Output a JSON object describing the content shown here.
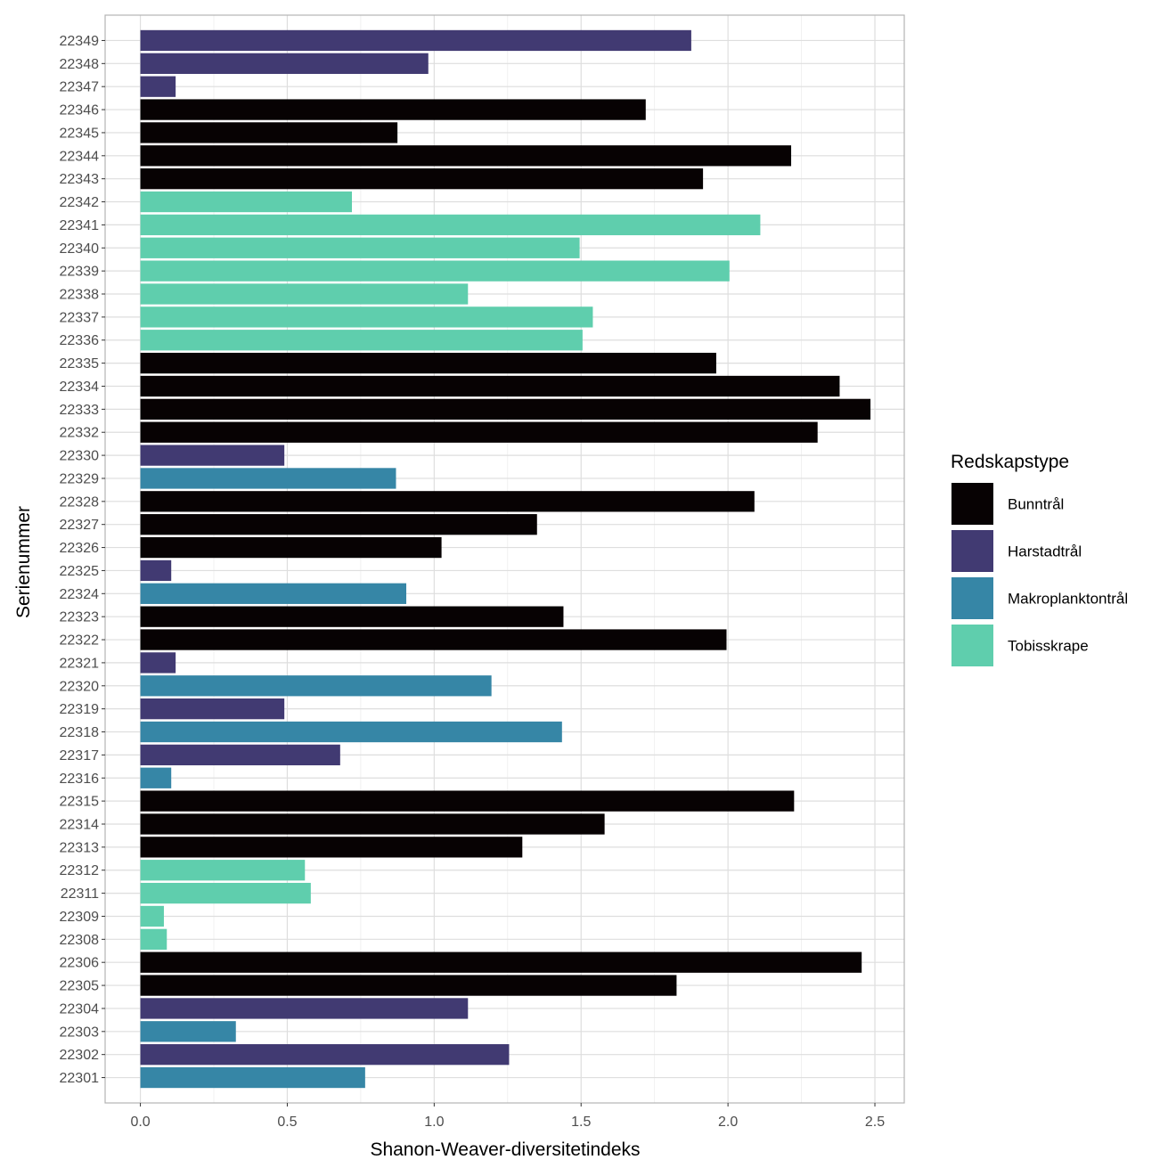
{
  "chart_data": {
    "type": "bar",
    "orientation": "horizontal",
    "title": "",
    "xlabel": "Shanon-Weaver-diversitetindeks",
    "ylabel": "Serienummer",
    "xlim": [
      -0.12,
      2.6
    ],
    "xticks": [
      0.0,
      0.5,
      1.0,
      1.5,
      2.0,
      2.5
    ],
    "xtick_labels": [
      "0.0",
      "0.5",
      "1.0",
      "1.5",
      "2.0",
      "2.5"
    ],
    "grid": true,
    "legend": {
      "title": "Redskapstype",
      "placement": "right",
      "entries": [
        {
          "name": "Bunntrål",
          "color": "#070203"
        },
        {
          "name": "Harstadtrål",
          "color": "#413A72"
        },
        {
          "name": "Makroplanktontrål",
          "color": "#3686A6"
        },
        {
          "name": "Tobisskrape",
          "color": "#5FCEAD"
        }
      ]
    },
    "categories": [
      "22301",
      "22302",
      "22303",
      "22304",
      "22305",
      "22306",
      "22308",
      "22309",
      "22311",
      "22312",
      "22313",
      "22314",
      "22315",
      "22316",
      "22317",
      "22318",
      "22319",
      "22320",
      "22321",
      "22322",
      "22323",
      "22324",
      "22325",
      "22326",
      "22327",
      "22328",
      "22329",
      "22330",
      "22332",
      "22333",
      "22334",
      "22335",
      "22336",
      "22337",
      "22338",
      "22339",
      "22340",
      "22341",
      "22342",
      "22343",
      "22344",
      "22345",
      "22346",
      "22347",
      "22348",
      "22349"
    ],
    "values": [
      0.765,
      1.255,
      0.325,
      1.115,
      1.825,
      2.455,
      0.09,
      0.08,
      0.58,
      0.56,
      1.3,
      1.58,
      2.225,
      0.105,
      0.68,
      1.435,
      0.49,
      1.195,
      0.12,
      1.995,
      1.44,
      0.905,
      0.105,
      1.025,
      1.35,
      2.09,
      0.87,
      0.49,
      2.305,
      2.485,
      2.38,
      1.96,
      1.505,
      1.54,
      1.115,
      2.005,
      1.495,
      2.11,
      0.72,
      1.915,
      2.215,
      0.875,
      1.72,
      0.12,
      0.98,
      1.875
    ],
    "groups": [
      "Makroplanktontrål",
      "Harstadtrål",
      "Makroplanktontrål",
      "Harstadtrål",
      "Bunntrål",
      "Bunntrål",
      "Tobisskrape",
      "Tobisskrape",
      "Tobisskrape",
      "Tobisskrape",
      "Bunntrål",
      "Bunntrål",
      "Bunntrål",
      "Makroplanktontrål",
      "Harstadtrål",
      "Makroplanktontrål",
      "Harstadtrål",
      "Makroplanktontrål",
      "Harstadtrål",
      "Bunntrål",
      "Bunntrål",
      "Makroplanktontrål",
      "Harstadtrål",
      "Bunntrål",
      "Bunntrål",
      "Bunntrål",
      "Makroplanktontrål",
      "Harstadtrål",
      "Bunntrål",
      "Bunntrål",
      "Bunntrål",
      "Bunntrål",
      "Tobisskrape",
      "Tobisskrape",
      "Tobisskrape",
      "Tobisskrape",
      "Tobisskrape",
      "Tobisskrape",
      "Tobisskrape",
      "Bunntrål",
      "Bunntrål",
      "Bunntrål",
      "Bunntrål",
      "Harstadtrål",
      "Harstadtrål",
      "Harstadtrål"
    ]
  }
}
